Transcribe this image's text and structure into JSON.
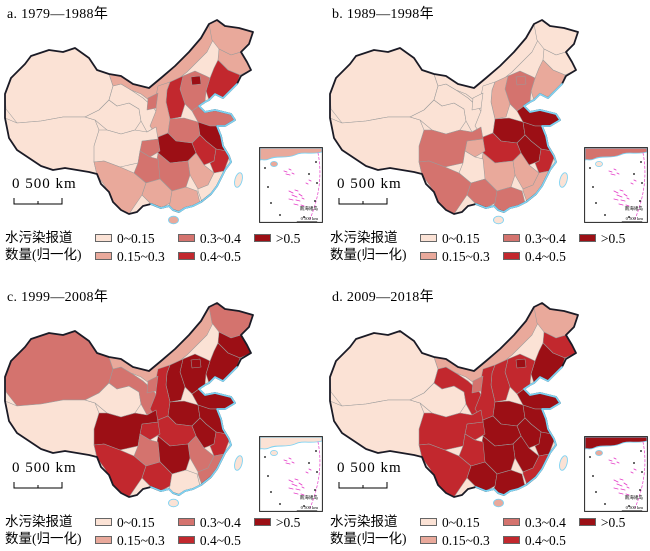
{
  "figure": {
    "background": "#ffffff"
  },
  "palette": {
    "c1": "#fbe2d5",
    "c2": "#e9a99b",
    "c3": "#d4736e",
    "c4": "#c2282e",
    "c5": "#9c0f15"
  },
  "map_style": {
    "outline_color": "#1b1b26",
    "province_border_color": "#9b9b9b",
    "coast_color": "#7ed2f2",
    "island_marker_color": "#e53ec8",
    "sea_color": "#ffffff"
  },
  "legend": {
    "label_line1": "水污染报道",
    "label_line2": "数量(归一化)",
    "classes": [
      {
        "key": "c1",
        "label": "0~0.15"
      },
      {
        "key": "c2",
        "label": "0.15~0.3"
      },
      {
        "key": "c3",
        "label": "0.3~0.4"
      },
      {
        "key": "c4",
        "label": "0.4~0.5"
      },
      {
        "key": "c5",
        "label": ">0.5"
      }
    ]
  },
  "scalebar": {
    "text": "0  500 km"
  },
  "inset": {
    "label": "南海诸岛",
    "scale_text": "0   500 km"
  },
  "panels": [
    {
      "id": "a",
      "title": "a. 1979—1988年",
      "regions": {
        "xinjiang": 1,
        "tibet": 1,
        "qinghai": 1,
        "gansu": 1,
        "inner_mongolia": 2,
        "heilongjiang": 2,
        "jilin": 2,
        "liaoning": 4,
        "hebei": 3,
        "beijing": 5,
        "shanxi": 4,
        "shaanxi": 2,
        "ningxia": 3,
        "shandong": 3,
        "henan": 3,
        "jiangsu": 5,
        "anhui": 4,
        "hubei": 5,
        "zhejiang": 4,
        "jiangxi": 2,
        "hunan": 3,
        "chongqing": 3,
        "sichuan": 1,
        "guizhou": 3,
        "yunnan": 2,
        "guangxi": 2,
        "guangdong": 2,
        "fujian": 1,
        "hainan": 2,
        "taiwan": 1
      }
    },
    {
      "id": "b",
      "title": "b. 1989—1998年",
      "regions": {
        "xinjiang": 1,
        "tibet": 1,
        "qinghai": 1,
        "gansu": 1,
        "inner_mongolia": 1,
        "heilongjiang": 1,
        "jilin": 1,
        "liaoning": 2,
        "hebei": 3,
        "beijing": 3,
        "shanxi": 2,
        "shaanxi": 1,
        "ningxia": 1,
        "shandong": 5,
        "henan": 5,
        "jiangsu": 5,
        "anhui": 5,
        "hubei": 4,
        "zhejiang": 4,
        "jiangxi": 2,
        "hunan": 2,
        "chongqing": 2,
        "sichuan": 3,
        "guizhou": 1,
        "yunnan": 3,
        "guangxi": 3,
        "guangdong": 3,
        "fujian": 2,
        "hainan": 1,
        "taiwan": 1
      }
    },
    {
      "id": "c",
      "title": "c. 1999—2008年",
      "regions": {
        "xinjiang": 3,
        "tibet": 1,
        "qinghai": 1,
        "gansu": 3,
        "inner_mongolia": 2,
        "heilongjiang": 3,
        "jilin": 5,
        "liaoning": 5,
        "hebei": 5,
        "beijing": 5,
        "shanxi": 5,
        "shaanxi": 4,
        "ningxia": 3,
        "shandong": 5,
        "henan": 5,
        "jiangsu": 5,
        "anhui": 5,
        "hubei": 4,
        "zhejiang": 4,
        "jiangxi": 3,
        "hunan": 5,
        "chongqing": 4,
        "sichuan": 5,
        "guizhou": 3,
        "yunnan": 4,
        "guangxi": 4,
        "guangdong": 1,
        "fujian": 3,
        "hainan": 1,
        "taiwan": 1
      }
    },
    {
      "id": "d",
      "title": "d. 2009—2018年",
      "regions": {
        "xinjiang": 1,
        "tibet": 1,
        "qinghai": 1,
        "gansu": 4,
        "inner_mongolia": 2,
        "heilongjiang": 2,
        "jilin": 4,
        "liaoning": 5,
        "hebei": 4,
        "beijing": 5,
        "shanxi": 4,
        "shaanxi": 4,
        "ningxia": 3,
        "shandong": 5,
        "henan": 5,
        "jiangsu": 5,
        "anhui": 5,
        "hubei": 5,
        "zhejiang": 5,
        "jiangxi": 5,
        "hunan": 5,
        "chongqing": 4,
        "sichuan": 4,
        "guizhou": 4,
        "yunnan": 4,
        "guangxi": 5,
        "guangdong": 5,
        "fujian": 4,
        "hainan": 2,
        "taiwan": 1
      }
    }
  ]
}
